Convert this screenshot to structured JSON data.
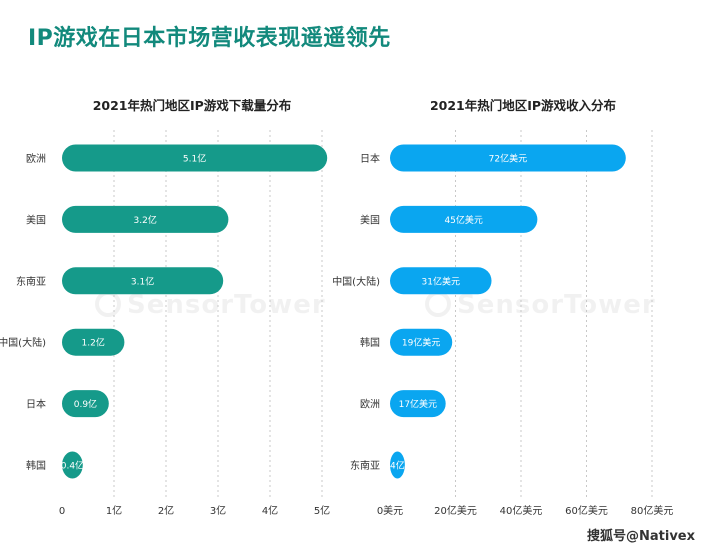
{
  "page": {
    "title": "IP游戏在日本市场营收表现遥遥领先",
    "watermark": "SensorTower",
    "credit": "搜狐号@Nativex"
  },
  "colors": {
    "title": "#12897c",
    "downloads_bar": "#159a8a",
    "revenue_bar": "#0aa6f0",
    "grid": "#c8c8c8",
    "label": "#333333"
  },
  "chart_data": [
    {
      "type": "bar",
      "orientation": "horizontal",
      "title": "2021年热门地区IP游戏下载量分布",
      "categories": [
        "欧洲",
        "美国",
        "东南亚",
        "中国(大陆)",
        "日本",
        "韩国"
      ],
      "values": [
        5.1,
        3.2,
        3.1,
        1.2,
        0.9,
        0.4
      ],
      "data_labels": [
        "5.1亿",
        "3.2亿",
        "3.1亿",
        "1.2亿",
        "0.9亿",
        "0.4亿"
      ],
      "xlim": [
        0,
        5
      ],
      "ticks": [
        0,
        1,
        2,
        3,
        4,
        5
      ],
      "tick_labels": [
        "0",
        "1亿",
        "2亿",
        "3亿",
        "4亿",
        "5亿"
      ],
      "grid": true
    },
    {
      "type": "bar",
      "orientation": "horizontal",
      "title": "2021年热门地区IP游戏收入分布",
      "categories": [
        "日本",
        "美国",
        "中国(大陆)",
        "韩国",
        "欧洲",
        "东南亚"
      ],
      "values": [
        72,
        45,
        31,
        19,
        17,
        4
      ],
      "data_labels": [
        "72亿美元",
        "45亿美元",
        "31亿美元",
        "19亿美元",
        "17亿美元",
        "4亿"
      ],
      "xlim": [
        0,
        80
      ],
      "ticks": [
        0,
        20,
        40,
        60,
        80
      ],
      "tick_labels": [
        "0美元",
        "20亿美元",
        "40亿美元",
        "60亿美元",
        "80亿美元"
      ],
      "grid": true
    }
  ]
}
